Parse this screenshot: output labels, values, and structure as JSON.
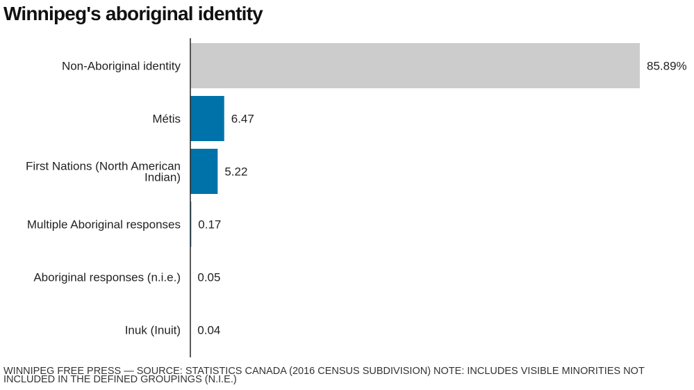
{
  "title": "Winnipeg's aboriginal identity",
  "footer": "WINNIPEG FREE PRESS — SOURCE: STATISTICS CANADA (2016 CENSUS SUBDIVISION) NOTE: INCLUDES VISIBLE MINORITIES NOT INCLUDED IN THE DEFINED GROUPINGS (N.I.E.)",
  "colors": {
    "highlight": "#cccccc",
    "bar": "#0072aa",
    "axis": "#222222",
    "text": "#222222"
  },
  "chart_data": {
    "type": "bar",
    "orientation": "horizontal",
    "title": "Winnipeg's aboriginal identity",
    "categories": [
      [
        "Non-Aboriginal identity"
      ],
      [
        "Métis"
      ],
      [
        "First Nations (North American",
        "Indian)"
      ],
      [
        "Multiple Aboriginal responses"
      ],
      [
        "Aboriginal responses (n.i.e.)"
      ],
      [
        "Inuk (Inuit)"
      ]
    ],
    "values": [
      85.89,
      6.47,
      5.22,
      0.17,
      0.05,
      0.04
    ],
    "value_labels": [
      "85.89%",
      "6.47",
      "5.22",
      "0.17",
      "0.05",
      "0.04"
    ],
    "bar_colors": [
      "#cccccc",
      "#0072aa",
      "#0072aa",
      "#0072aa",
      "#0072aa",
      "#0072aa"
    ],
    "xlim": [
      0,
      85.89
    ],
    "grid": false,
    "legend": "none"
  }
}
